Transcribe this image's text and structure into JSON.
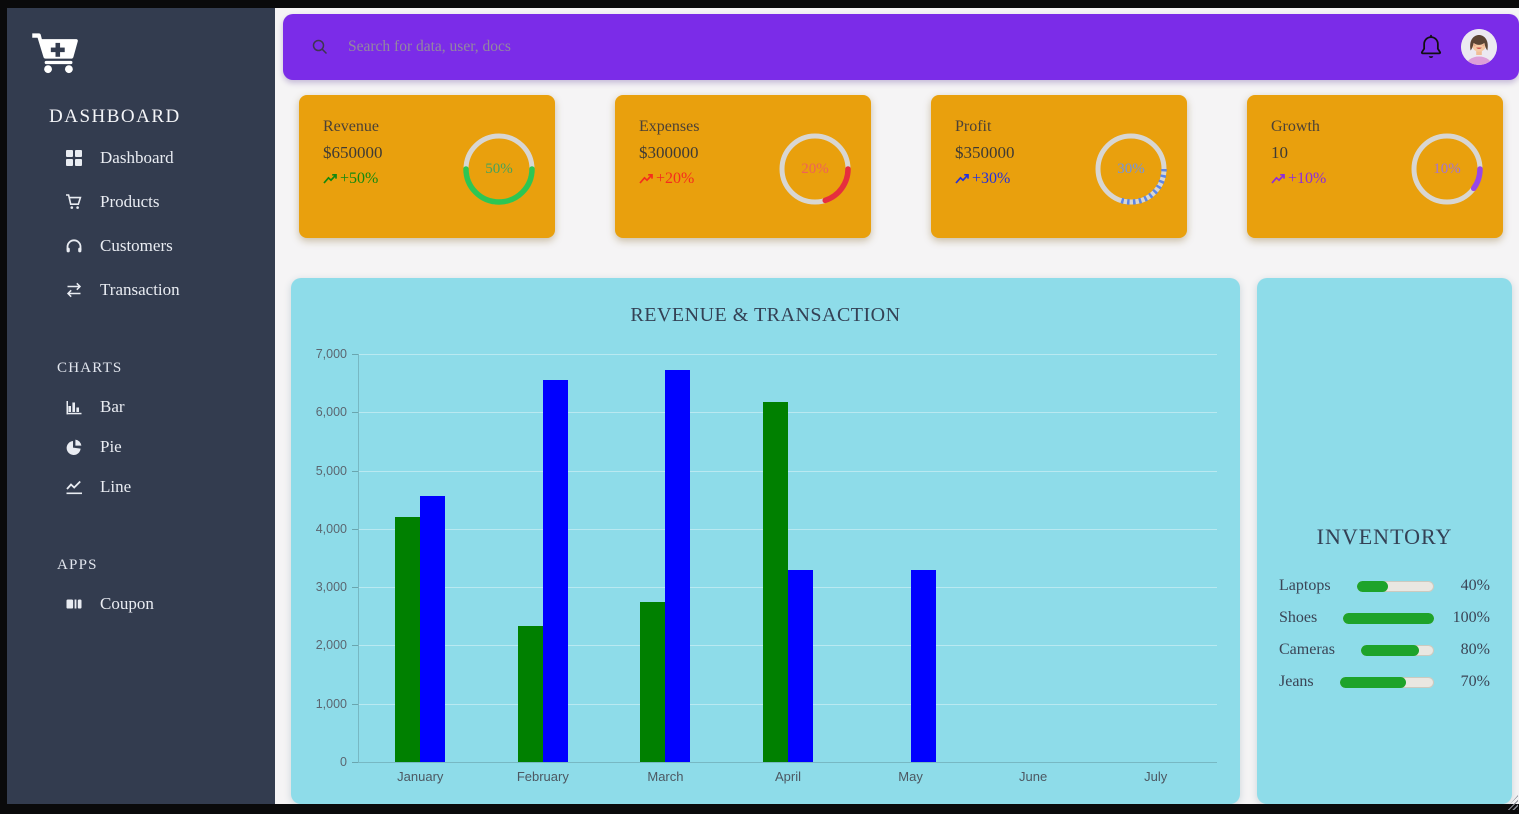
{
  "sidebar": {
    "title": "DASHBOARD",
    "menu": [
      {
        "icon": "grid-icon",
        "label": "Dashboard"
      },
      {
        "icon": "cart-icon",
        "label": "Products"
      },
      {
        "icon": "headphones-icon",
        "label": "Customers"
      },
      {
        "icon": "transfer-arrows-icon",
        "label": "Transaction"
      }
    ],
    "sections": [
      {
        "title": "CHARTS",
        "items": [
          {
            "icon": "bar-chart-icon",
            "label": "Bar"
          },
          {
            "icon": "pie-chart-icon",
            "label": "Pie"
          },
          {
            "icon": "line-chart-icon",
            "label": "Line"
          }
        ]
      },
      {
        "title": "APPS",
        "items": [
          {
            "icon": "ticket-icon",
            "label": "Coupon"
          }
        ]
      }
    ]
  },
  "topbar": {
    "search_placeholder": "Search for data, user, docs",
    "search_value": ""
  },
  "stat_cards": [
    {
      "title": "Revenue",
      "value": "$650000",
      "trend": "+50%",
      "percent": 50,
      "percent_label": "50%",
      "arc_color": "#2dc653",
      "trend_color": "#12890f",
      "pct_text_color": "#46a35c",
      "arc_style": "solid"
    },
    {
      "title": "Expenses",
      "value": "$300000",
      "trend": "+20%",
      "percent": 20,
      "percent_label": "20%",
      "arc_color": "#e62e3e",
      "trend_color": "#f52c1d",
      "pct_text_color": "#ee6258",
      "arc_style": "solid"
    },
    {
      "title": "Profit",
      "value": "$350000",
      "trend": "+30%",
      "percent": 30,
      "percent_label": "30%",
      "arc_color": "#5c86e8",
      "trend_color": "#2430dd",
      "pct_text_color": "#6f94e4",
      "arc_style": "dotted"
    },
    {
      "title": "Growth",
      "value": "10",
      "trend": "+10%",
      "percent": 10,
      "percent_label": "10%",
      "arc_color": "#9747e8",
      "trend_color": "#8c2bdf",
      "pct_text_color": "#a273d4",
      "arc_style": "solid"
    }
  ],
  "chart_data": [
    {
      "id": "revenue-transaction",
      "type": "bar",
      "title": "REVENUE & TRANSACTION",
      "categories": [
        "January",
        "February",
        "March",
        "April",
        "May",
        "June",
        "July"
      ],
      "series": [
        {
          "name": "revenue",
          "color": "#008000",
          "values": [
            4200,
            2340,
            2750,
            6180,
            0,
            0,
            0
          ]
        },
        {
          "name": "transaction",
          "color": "#0000ff",
          "values": [
            4570,
            6550,
            6730,
            3300,
            3300,
            0,
            0
          ]
        }
      ],
      "ylim": [
        0,
        7000
      ],
      "ytick_step": 1000,
      "ytick_labels": [
        "0",
        "1,000",
        "2,000",
        "3,000",
        "4,000",
        "5,000",
        "6,000",
        "7,000"
      ],
      "legend_position": "none",
      "grid": true
    },
    {
      "id": "inventory",
      "type": "bar",
      "orientation": "horizontal-progress",
      "title": "INVENTORY",
      "categories": [
        "Laptops",
        "Shoes",
        "Cameras",
        "Jeans"
      ],
      "values": [
        40,
        100,
        80,
        70
      ],
      "value_labels": [
        "40%",
        "100%",
        "80%",
        "70%"
      ],
      "xlim": [
        0,
        100
      ],
      "bar_color": "#1ea32a"
    }
  ],
  "colors": {
    "frame": "#0a0a0b",
    "sidebar_bg": "#333c4f",
    "topbar_bg": "#7b2ce8",
    "card_bg": "#e9a00d",
    "panel_bg": "#8edce9",
    "page_bg": "#f5f4f5",
    "heading_text": "#344155"
  }
}
